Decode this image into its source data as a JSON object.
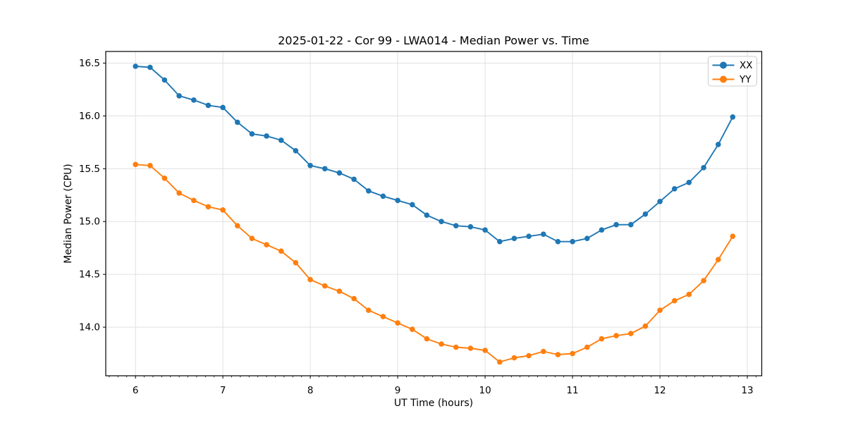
{
  "figure": {
    "background": "#ffffff",
    "spine_color": "#000000",
    "grid_color": "#e0e0e0",
    "legend_border_color": "#cccccc"
  },
  "chart_data": {
    "type": "line",
    "title": "2025-01-22 - Cor 99 - LWA014 - Median Power vs. Time",
    "xlabel": "UT Time (hours)",
    "ylabel": "Median Power (CPU)",
    "xlim": [
      5.66,
      13.165
    ],
    "ylim": [
      13.54,
      16.61
    ],
    "x_ticks": [
      6,
      7,
      8,
      9,
      10,
      11,
      12,
      13
    ],
    "y_ticks": [
      14.0,
      14.5,
      15.0,
      15.5,
      16.0,
      16.5
    ],
    "x_minor_step": 0.1,
    "grid": true,
    "legend_position": "upper right",
    "marker": "circle",
    "x": [
      6.0,
      6.167,
      6.333,
      6.5,
      6.667,
      6.833,
      7.0,
      7.167,
      7.333,
      7.5,
      7.667,
      7.833,
      8.0,
      8.167,
      8.333,
      8.5,
      8.667,
      8.833,
      9.0,
      9.167,
      9.333,
      9.5,
      9.667,
      9.833,
      10.0,
      10.167,
      10.333,
      10.5,
      10.667,
      10.833,
      11.0,
      11.167,
      11.333,
      11.5,
      11.667,
      11.833,
      12.0,
      12.167,
      12.333,
      12.5,
      12.667,
      12.833
    ],
    "series": [
      {
        "name": "XX",
        "color": "#1f77b4",
        "values": [
          16.47,
          16.46,
          16.34,
          16.19,
          16.15,
          16.1,
          16.08,
          15.94,
          15.83,
          15.81,
          15.77,
          15.67,
          15.53,
          15.5,
          15.46,
          15.4,
          15.29,
          15.24,
          15.2,
          15.16,
          15.06,
          15.0,
          14.96,
          14.95,
          14.92,
          14.81,
          14.84,
          14.86,
          14.88,
          14.81,
          14.81,
          14.84,
          14.92,
          14.97,
          14.97,
          15.07,
          15.19,
          15.31,
          15.37,
          15.51,
          15.73,
          15.99
        ]
      },
      {
        "name": "YY",
        "color": "#ff7f0e",
        "values": [
          15.54,
          15.53,
          15.41,
          15.27,
          15.2,
          15.14,
          15.11,
          14.96,
          14.84,
          14.78,
          14.72,
          14.61,
          14.45,
          14.39,
          14.34,
          14.27,
          14.16,
          14.1,
          14.04,
          13.98,
          13.89,
          13.84,
          13.81,
          13.8,
          13.78,
          13.67,
          13.71,
          13.73,
          13.77,
          13.74,
          13.75,
          13.81,
          13.89,
          13.92,
          13.94,
          14.01,
          14.16,
          14.25,
          14.31,
          14.44,
          14.64,
          14.86
        ]
      }
    ]
  }
}
